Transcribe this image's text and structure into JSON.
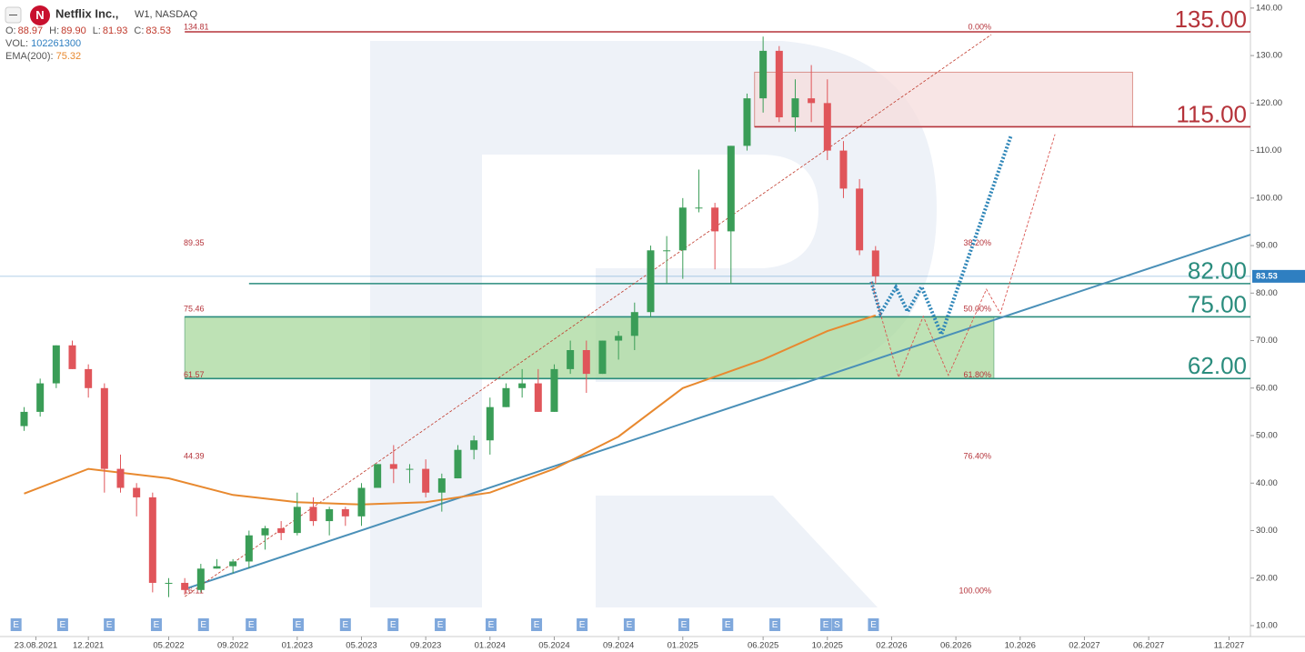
{
  "chart_data": {
    "type": "candlestick",
    "header": {
      "logo": "N",
      "symbol": "Netflix Inc.,",
      "meta": "W1, NASDAQ",
      "ohlc": [
        {
          "key": "O:",
          "value": "88.97"
        },
        {
          "key": "H:",
          "value": "89.90"
        },
        {
          "key": "L:",
          "value": "81.93"
        },
        {
          "key": "C:",
          "value": "83.53"
        }
      ],
      "vol_key": "VOL:",
      "vol": "102261300",
      "ema_key": "EMA(200):",
      "ema": "75.32"
    },
    "xlim": [
      "16.06.2021",
      "11.12.2027"
    ],
    "ylim": [
      7.7,
      141.7
    ],
    "yticks": [
      {
        "value": 10,
        "label": "10.00"
      },
      {
        "value": 20,
        "label": "20.00"
      },
      {
        "value": 30,
        "label": "30.00"
      },
      {
        "value": 40,
        "label": "40.00"
      },
      {
        "value": 50,
        "label": "50.00"
      },
      {
        "value": 60,
        "label": "60.00"
      },
      {
        "value": 70,
        "label": "70.00"
      },
      {
        "value": 80,
        "label": "80.00"
      },
      {
        "value": 90,
        "label": "90.00"
      },
      {
        "value": 100,
        "label": "100.00"
      },
      {
        "value": 110,
        "label": "110.00"
      },
      {
        "value": 120,
        "label": "120.00"
      },
      {
        "value": 130,
        "label": "130.00"
      },
      {
        "value": 140,
        "label": "140.00"
      }
    ],
    "xticks": [
      "23.08.2021",
      "12.2021",
      "05.2022",
      "09.2022",
      "01.2023",
      "05.2023",
      "09.2023",
      "01.2024",
      "05.2024",
      "09.2024",
      "01.2025",
      "06.2025",
      "10.2025",
      "02.2026",
      "06.2026",
      "10.2026",
      "02.2027",
      "06.2027",
      "11.2027"
    ],
    "color_up": "#3a9d57",
    "color_down": "#e0555a",
    "x": [
      "08.2021",
      "09.2021",
      "10.2021",
      "11.2021",
      "12.2021",
      "01.2022",
      "02.2022",
      "03.2022",
      "04.2022",
      "05.2022",
      "06.2022",
      "07.2022",
      "08.2022",
      "09.2022",
      "10.2022",
      "11.2022",
      "12.2022",
      "01.2023",
      "02.2023",
      "03.2023",
      "04.2023",
      "05.2023",
      "06.2023",
      "07.2023",
      "08.2023",
      "09.2023",
      "10.2023",
      "11.2023",
      "12.2023",
      "01.2024",
      "02.2024",
      "03.2024",
      "04.2024",
      "05.2024",
      "06.2024",
      "07.2024",
      "08.2024",
      "09.2024",
      "10.2024",
      "11.2024",
      "12.2024",
      "01.2025",
      "02.2025",
      "03.2025",
      "04.2025",
      "05.2025",
      "06.2025",
      "07.2025",
      "08.2025",
      "09.2025",
      "10.2025",
      "11.2025",
      "12.2025",
      "01.2026"
    ],
    "open": [
      52,
      55,
      61,
      69,
      64,
      60,
      43,
      39,
      37,
      19,
      19,
      17.5,
      22,
      22.5,
      23.5,
      29,
      30.5,
      29.5,
      35,
      32,
      34.5,
      33,
      39,
      44,
      43,
      43,
      38,
      41,
      47,
      49,
      56,
      60,
      61,
      55,
      64,
      68,
      63,
      70,
      71,
      76,
      89,
      89,
      98,
      98,
      93,
      111,
      121,
      131,
      117,
      121,
      120,
      110,
      102,
      88.97
    ],
    "high": [
      56,
      62,
      69,
      70,
      65,
      61,
      46,
      40,
      38,
      20,
      20,
      23,
      24,
      24,
      30,
      31,
      32,
      38,
      37,
      35,
      35,
      40,
      44,
      48,
      44,
      45,
      42,
      48,
      50,
      58,
      61,
      64,
      64,
      65,
      70,
      70,
      70,
      72,
      78,
      90,
      92,
      100,
      106,
      99,
      111,
      122,
      134,
      132,
      125,
      128,
      125,
      112,
      104,
      89.9
    ],
    "low": [
      51,
      54,
      60,
      64,
      58,
      38,
      38,
      33,
      17,
      16,
      16.5,
      17,
      22,
      21,
      22,
      26,
      28,
      29,
      31,
      29,
      31,
      31,
      39,
      40,
      40,
      37,
      34,
      41,
      45,
      46,
      56,
      58,
      55,
      55,
      63,
      59,
      63,
      66,
      68,
      75,
      82,
      83,
      97,
      85,
      82,
      110,
      118,
      116,
      114,
      116,
      108,
      100,
      88,
      81.93
    ],
    "close": [
      55,
      61,
      69,
      64,
      60,
      43,
      39,
      37,
      19,
      19,
      17.5,
      22,
      22.5,
      23.5,
      29,
      30.5,
      29.5,
      35,
      32,
      34.5,
      33,
      39,
      44,
      43,
      43,
      38,
      41,
      47,
      49,
      56,
      60,
      61,
      55,
      64,
      68,
      63,
      70,
      71,
      76,
      89,
      89,
      98,
      98,
      93,
      111,
      121,
      131,
      117,
      121,
      120,
      110,
      102,
      89,
      83.53
    ],
    "ema": {
      "name": "EMA(200)",
      "color": "#e8892f",
      "x": [
        "08.2021",
        "12.2021",
        "05.2022",
        "09.2022",
        "01.2023",
        "05.2023",
        "09.2023",
        "01.2024",
        "05.2024",
        "09.2024",
        "01.2025",
        "06.2025",
        "10.2025",
        "01.2026"
      ],
      "values": [
        37.8,
        43,
        41,
        37.5,
        36,
        35.5,
        36,
        38,
        43,
        49.8,
        60,
        66,
        72,
        75.32
      ]
    },
    "trendline": {
      "color": "#4a90b8",
      "x": [
        "01.06.2022",
        "11.12.2027"
      ],
      "values": [
        17.7,
        92.3
      ]
    },
    "fib_line": {
      "color": "#c0392b",
      "x": [
        "01.06.2022",
        "07.08.2026"
      ],
      "values": [
        16.11,
        134.4
      ]
    },
    "zones": [
      {
        "from": "15.05.2025",
        "to": "05.2027",
        "low": 115,
        "high": 126.5,
        "color": "#f6dcdc",
        "border": "#c0392b"
      },
      {
        "from": "06.2022",
        "to": "12.08.2026",
        "low": 62,
        "high": 75,
        "color": "#a8d89c",
        "border": "#2e8b57"
      }
    ],
    "levels": [
      {
        "value": 135,
        "label": "135.00",
        "color": "#b5333a",
        "from": "06.2022"
      },
      {
        "value": 115,
        "label": "115.00",
        "color": "#b5333a",
        "from": "15.05.2025"
      },
      {
        "value": 82,
        "label": "82.00",
        "color": "#2a8c7d",
        "from": "10.2022"
      },
      {
        "value": 75,
        "label": "75.00",
        "color": "#2a8c7d",
        "from": "06.2022"
      },
      {
        "value": 62,
        "label": "62.00",
        "color": "#2a8c7d",
        "from": "06.2022"
      }
    ],
    "fib": [
      {
        "value": 134.81,
        "label": "134.81",
        "pct": "0.00%"
      },
      {
        "value": 89.35,
        "label": "89.35",
        "pct": "38.20%"
      },
      {
        "value": 75.46,
        "label": "75.46",
        "pct": "50.00%"
      },
      {
        "value": 61.57,
        "label": "61.57",
        "pct": "61.80%"
      },
      {
        "value": 44.39,
        "label": "44.39",
        "pct": "76.40%"
      },
      {
        "value": 16.11,
        "label": "16.11",
        "pct": "100.00%"
      }
    ],
    "projections": [
      {
        "color": "#2f86b8",
        "x": [
          "23.12.2025",
          "10.01.2026",
          "09.02.2026",
          "01.03.2026",
          "27.03.2026",
          "04.05.2026",
          "14.09.2026"
        ],
        "values": [
          82.4,
          75.7,
          81.2,
          76.1,
          81.3,
          71.3,
          113.2
        ]
      },
      {
        "color": "#d9534f",
        "x": [
          "23.12.2025",
          "14.02.2026",
          "30.03.2026",
          "17.05.2026",
          "28.07.2026",
          "24.08.2026",
          "06.12.2026"
        ],
        "values": [
          82.4,
          62.3,
          75.1,
          62.7,
          80.8,
          75.7,
          113.4
        ]
      }
    ],
    "price": {
      "value": 83.53,
      "label": "83.53",
      "color": "#2f7fc1"
    },
    "events": [
      {
        "x": "16.07.2021",
        "label": "E"
      },
      {
        "x": "13.10.2021",
        "label": "E"
      },
      {
        "x": "10.01.2022",
        "label": "E"
      },
      {
        "x": "08.04.2022",
        "label": "E"
      },
      {
        "x": "06.07.2022",
        "label": "E"
      },
      {
        "x": "05.10.2022",
        "label": "E"
      },
      {
        "x": "03.01.2023",
        "label": "E"
      },
      {
        "x": "01.04.2023",
        "label": "E"
      },
      {
        "x": "30.06.2023",
        "label": "E"
      },
      {
        "x": "28.09.2023",
        "label": "E"
      },
      {
        "x": "03.01.2024",
        "label": "E"
      },
      {
        "x": "28.03.2024",
        "label": "E"
      },
      {
        "x": "23.06.2024",
        "label": "E"
      },
      {
        "x": "21.09.2024",
        "label": "E"
      },
      {
        "x": "03.01.2025",
        "label": "E"
      },
      {
        "x": "25.03.2025",
        "label": "E"
      },
      {
        "x": "23.06.2025",
        "label": "E"
      },
      {
        "x": "28.09.2025",
        "label": "E"
      },
      {
        "x": "19.10.2025",
        "label": "S"
      },
      {
        "x": "27.12.2025",
        "label": "E"
      }
    ]
  }
}
